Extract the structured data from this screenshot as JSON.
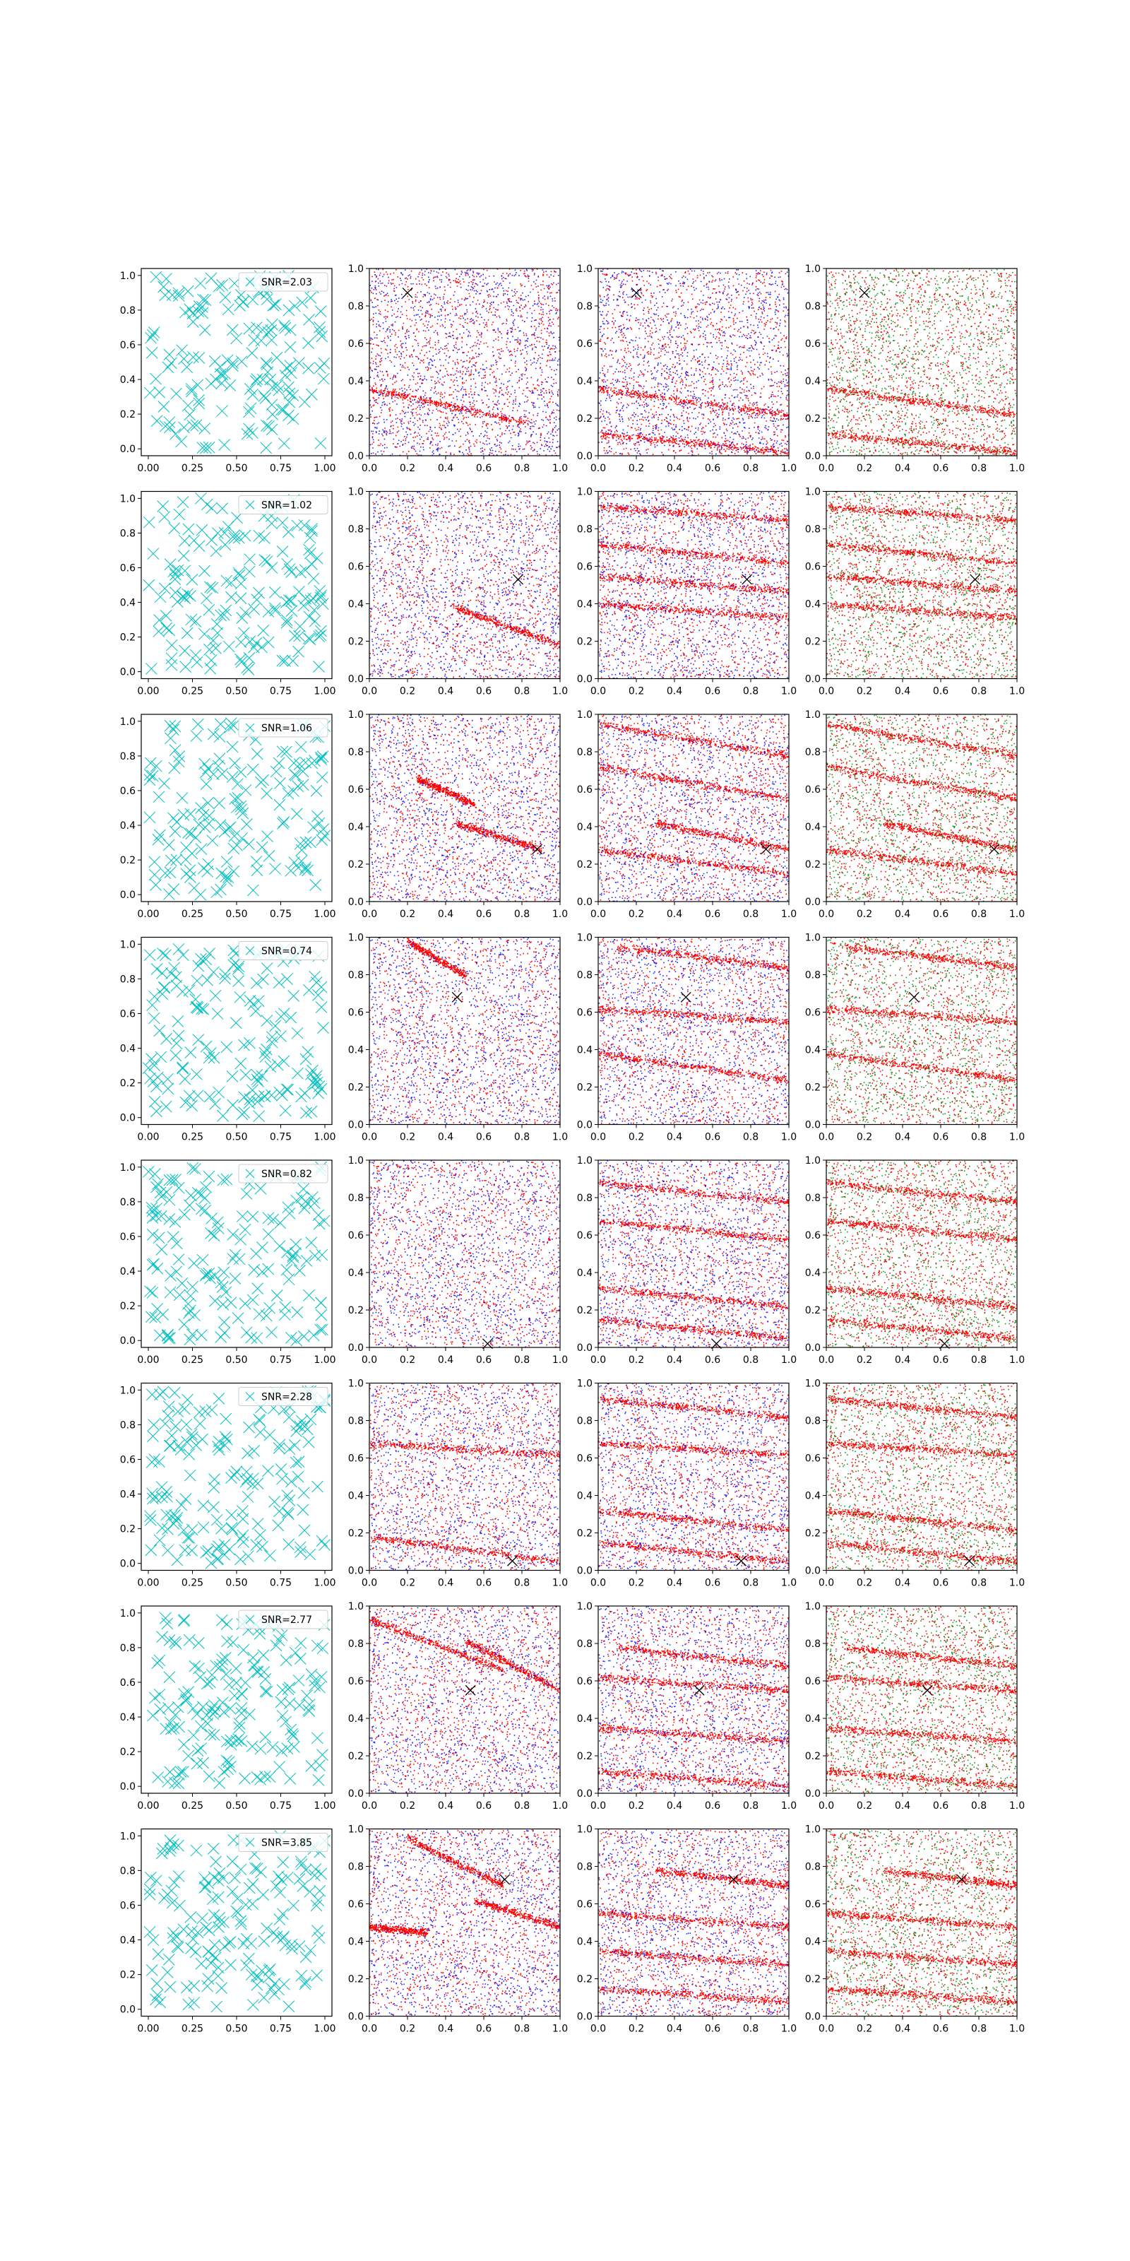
{
  "figure": {
    "rows": 8,
    "columns": 4,
    "colors": {
      "cross": "#00bfbf",
      "red": "#ff0000",
      "blue": "#0000ff",
      "green": "#008000",
      "marker": "#000000"
    },
    "snr_labels": [
      "SNR=2.03",
      "SNR=1.02",
      "SNR=1.06",
      "SNR=0.74",
      "SNR=0.82",
      "SNR=2.28",
      "SNR=2.77",
      "SNR=3.85"
    ],
    "x_ticks_first_column": [
      "0.00",
      "0.25",
      "0.50",
      "0.75",
      "1.00"
    ],
    "x_ticks_other_columns": [
      "0.0",
      "0.2",
      "0.4",
      "0.6",
      "0.8",
      "1.0"
    ],
    "y_ticks": [
      "0.0",
      "0.2",
      "0.4",
      "0.6",
      "0.8",
      "1.0"
    ]
  },
  "chart_data": [
    {
      "type": "scatter",
      "row_markers": [
        [
          0.2,
          0.87
        ],
        [
          0.78,
          0.53
        ],
        [
          0.88,
          0.28
        ],
        [
          0.46,
          0.68
        ],
        [
          0.62,
          0.02
        ],
        [
          0.75,
          0.05
        ],
        [
          0.53,
          0.55
        ],
        [
          0.71,
          0.73
        ]
      ],
      "panels": {
        "column_1": {
          "series": "cyan crosses",
          "marker": "x",
          "xlim": [
            0.0,
            1.0
          ],
          "ylim": [
            0.0,
            1.0
          ],
          "legend": "upper-right"
        },
        "column_2": {
          "series": [
            "red",
            "blue"
          ],
          "xlim": [
            0.0,
            1.0
          ],
          "ylim": [
            0.0,
            1.0
          ]
        },
        "column_3": {
          "series": [
            "red",
            "blue"
          ],
          "xlim": [
            0.0,
            1.0
          ],
          "ylim": [
            0.0,
            1.0
          ]
        },
        "column_4": {
          "series": [
            "red",
            "green"
          ],
          "xlim": [
            0.0,
            1.0
          ],
          "ylim": [
            0.0,
            1.0
          ]
        }
      },
      "stripes_col2": [
        [
          [
            0.0,
            0.36,
            0.82,
            0.18
          ]
        ],
        [
          [
            0.45,
            0.38,
            1.0,
            0.18
          ]
        ],
        [
          [
            0.25,
            0.66,
            0.55,
            0.52
          ],
          [
            0.45,
            0.42,
            0.9,
            0.28
          ]
        ],
        [
          [
            0.2,
            0.98,
            0.5,
            0.8
          ]
        ],
        [],
        [
          [
            0.0,
            0.68,
            1.0,
            0.62
          ],
          [
            0.0,
            0.18,
            1.0,
            0.05
          ]
        ],
        [
          [
            0.0,
            0.93,
            0.7,
            0.66
          ],
          [
            0.5,
            0.82,
            1.0,
            0.55
          ]
        ],
        [
          [
            0.2,
            0.95,
            0.7,
            0.7
          ],
          [
            0.55,
            0.62,
            1.0,
            0.48
          ],
          [
            0.0,
            0.48,
            0.3,
            0.45
          ]
        ]
      ],
      "stripes_col3": [
        [
          [
            0.0,
            0.36,
            1.0,
            0.22
          ],
          [
            0.0,
            0.12,
            1.0,
            0.02
          ]
        ],
        [
          [
            0.0,
            0.92,
            1.0,
            0.85
          ],
          [
            0.0,
            0.72,
            1.0,
            0.62
          ],
          [
            0.0,
            0.55,
            1.0,
            0.47
          ],
          [
            0.0,
            0.4,
            1.0,
            0.33
          ]
        ],
        [
          [
            0.0,
            0.95,
            1.0,
            0.78
          ],
          [
            0.0,
            0.72,
            1.0,
            0.55
          ],
          [
            0.3,
            0.42,
            1.0,
            0.28
          ],
          [
            0.0,
            0.28,
            1.0,
            0.15
          ]
        ],
        [
          [
            0.1,
            0.95,
            1.0,
            0.84
          ],
          [
            0.0,
            0.62,
            1.0,
            0.55
          ],
          [
            0.0,
            0.38,
            1.0,
            0.24
          ]
        ],
        [
          [
            0.0,
            0.88,
            1.0,
            0.78
          ],
          [
            0.0,
            0.68,
            1.0,
            0.58
          ],
          [
            0.0,
            0.32,
            1.0,
            0.22
          ],
          [
            0.0,
            0.15,
            1.0,
            0.05
          ]
        ],
        [
          [
            0.0,
            0.92,
            1.0,
            0.82
          ],
          [
            0.0,
            0.68,
            1.0,
            0.62
          ],
          [
            0.0,
            0.32,
            1.0,
            0.22
          ],
          [
            0.0,
            0.15,
            1.0,
            0.05
          ]
        ],
        [
          [
            0.1,
            0.78,
            1.0,
            0.68
          ],
          [
            0.0,
            0.62,
            1.0,
            0.55
          ],
          [
            0.0,
            0.35,
            1.0,
            0.28
          ],
          [
            0.0,
            0.12,
            1.0,
            0.04
          ]
        ],
        [
          [
            0.3,
            0.78,
            1.0,
            0.7
          ],
          [
            0.0,
            0.55,
            1.0,
            0.48
          ],
          [
            0.0,
            0.35,
            1.0,
            0.28
          ],
          [
            0.0,
            0.15,
            1.0,
            0.08
          ]
        ]
      ]
    }
  ]
}
